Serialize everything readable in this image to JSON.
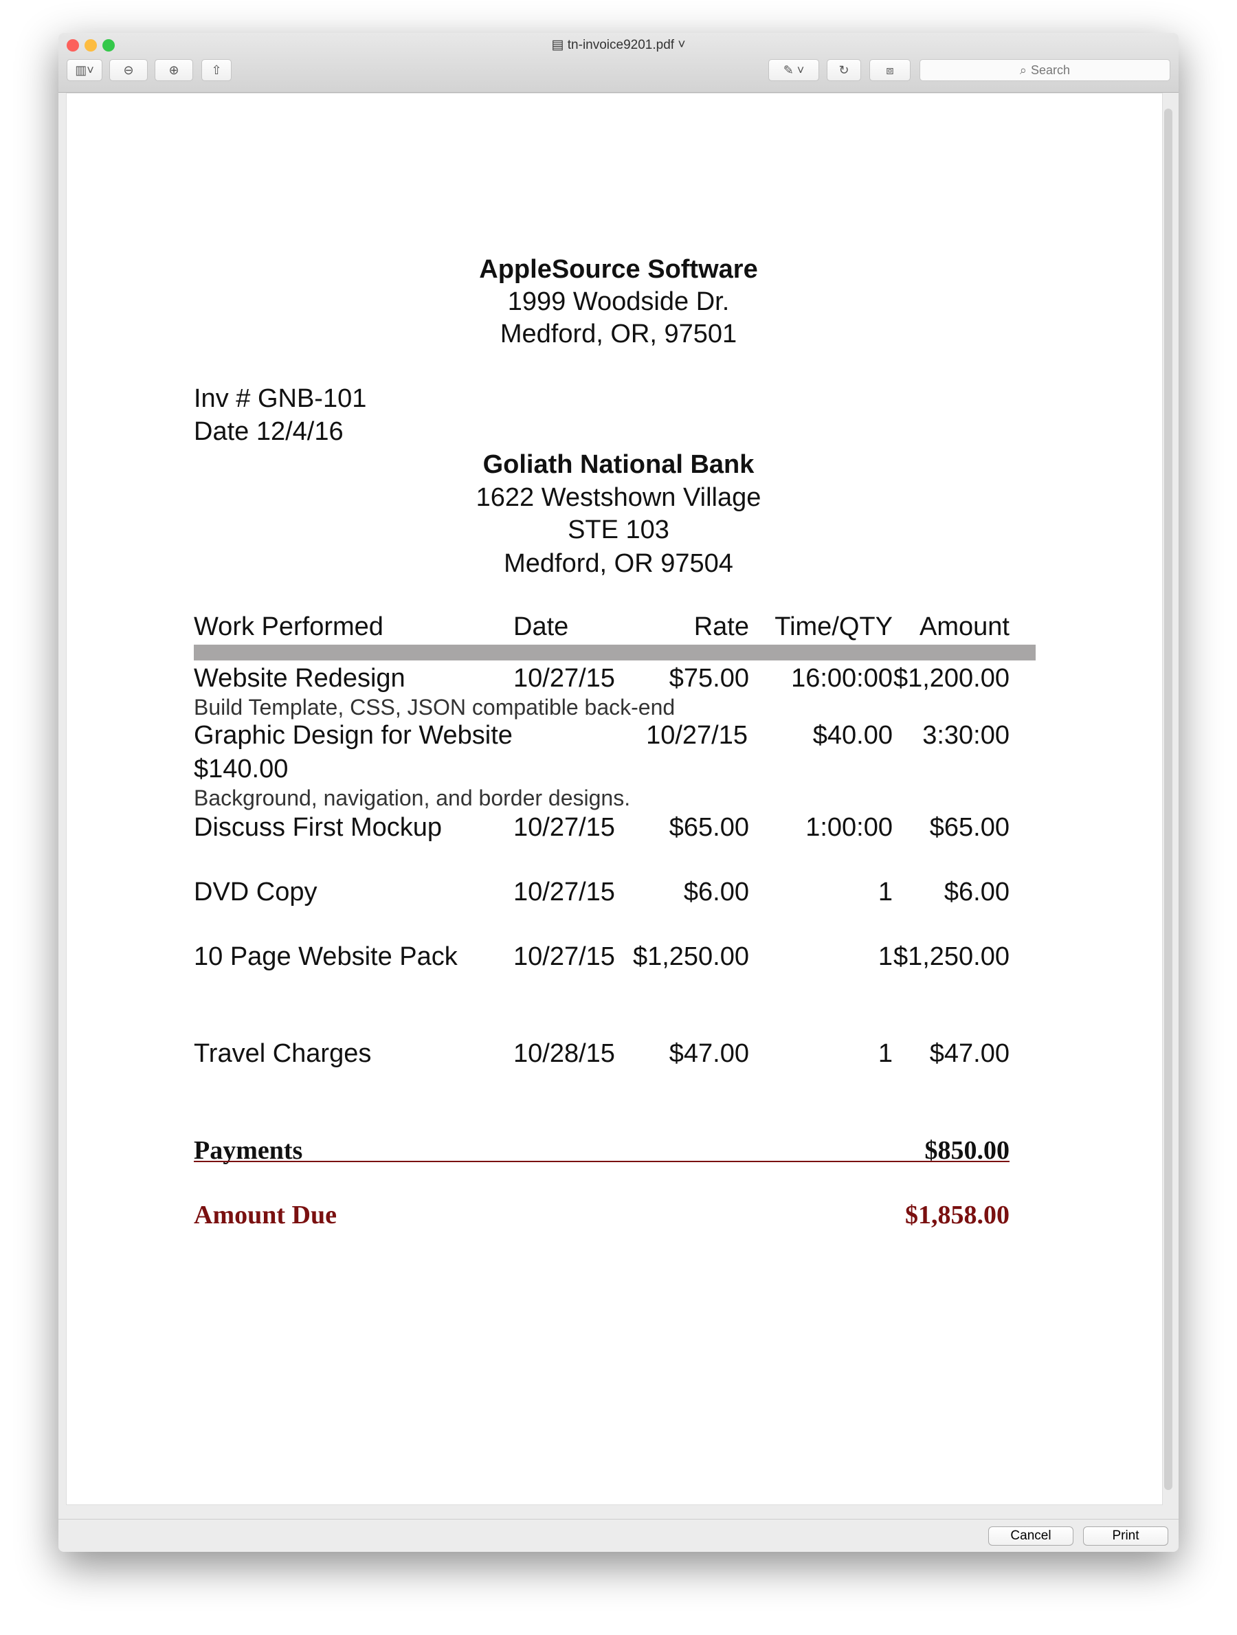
{
  "window": {
    "title": "tn-invoice9201.pdf",
    "search_placeholder": "Search",
    "cancel": "Cancel",
    "print": "Print"
  },
  "from": {
    "name": "AppleSource Software",
    "street": "1999 Woodside Dr.",
    "city": "Medford, OR, 97501"
  },
  "invoice": {
    "number": "Inv # GNB-101",
    "date": "Date 12/4/16"
  },
  "to": {
    "name": "Goliath National Bank",
    "street": "1622 Westshown Village",
    "suite": "STE 103",
    "city": "Medford, OR 97504"
  },
  "columns": [
    "Work Performed",
    "Date",
    "Rate",
    "Time/QTY",
    "Amount"
  ],
  "items": [
    {
      "work": "Website Redesign",
      "date": "10/27/15",
      "rate": "$75.00",
      "qty": "16:00:00",
      "amount": "$1,200.00",
      "desc": "Build Template, CSS, JSON compatible back-end"
    },
    {
      "work": "Graphic Design for Website",
      "date": "10/27/15",
      "rate": "$40.00",
      "qty": "3:30:00",
      "amount": "$140.00",
      "desc": "Background, navigation, and border designs."
    },
    {
      "work": "Discuss First Mockup",
      "date": "10/27/15",
      "rate": "$65.00",
      "qty": "1:00:00",
      "amount": "$65.00"
    },
    {
      "work": "DVD Copy",
      "date": "10/27/15",
      "rate": "$6.00",
      "qty": "1",
      "amount": "$6.00"
    },
    {
      "work": "10 Page Website Pack",
      "date": "10/27/15",
      "rate": "$1,250.00",
      "qty": "1",
      "amount": "$1,250.00"
    },
    {
      "work": "Travel Charges",
      "date": "10/28/15",
      "rate": "$47.00",
      "qty": "1",
      "amount": "$47.00"
    }
  ],
  "payments": {
    "label": "Payments",
    "value": "$850.00"
  },
  "amount_due": {
    "label": "Amount Due",
    "value": "$1,858.00"
  },
  "colors": {
    "accent": "#7a1010",
    "header_bar": "#a8a6a6"
  }
}
